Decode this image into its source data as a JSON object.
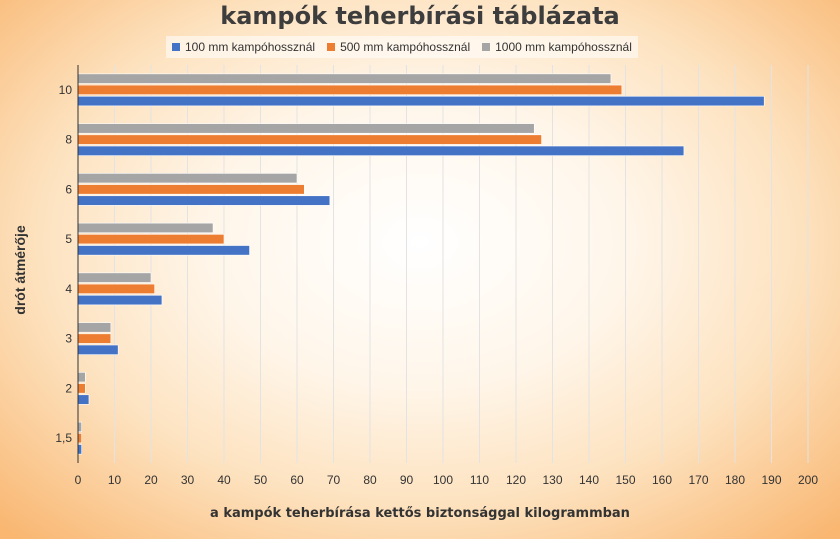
{
  "chart_data": {
    "type": "bar",
    "orientation": "horizontal",
    "title": "kampók teherbírási táblázata",
    "xlabel": "a kampók teherbírása kettős biztonsággal kilogrammban",
    "ylabel": "drót átmérője",
    "categories": [
      "1,5",
      "2",
      "3",
      "4",
      "5",
      "6",
      "8",
      "10"
    ],
    "series": [
      {
        "name": "1000 mm kampóhossznál",
        "color": "#a5a5a5",
        "values": [
          1,
          2,
          9,
          20,
          37,
          60,
          125,
          146
        ]
      },
      {
        "name": "500 mm kampóhossznál",
        "color": "#ed7d31",
        "values": [
          1,
          2,
          9,
          21,
          40,
          62,
          127,
          149
        ]
      },
      {
        "name": "100 mm kampóhossznál",
        "color": "#4472c4",
        "values": [
          1,
          3,
          11,
          23,
          47,
          69,
          166,
          188
        ]
      }
    ],
    "xlim": [
      0,
      200
    ],
    "xticks": [
      0,
      10,
      20,
      30,
      40,
      50,
      60,
      70,
      80,
      90,
      100,
      110,
      120,
      130,
      140,
      150,
      160,
      170,
      180,
      190,
      200
    ],
    "legend": "top",
    "grid": true
  }
}
